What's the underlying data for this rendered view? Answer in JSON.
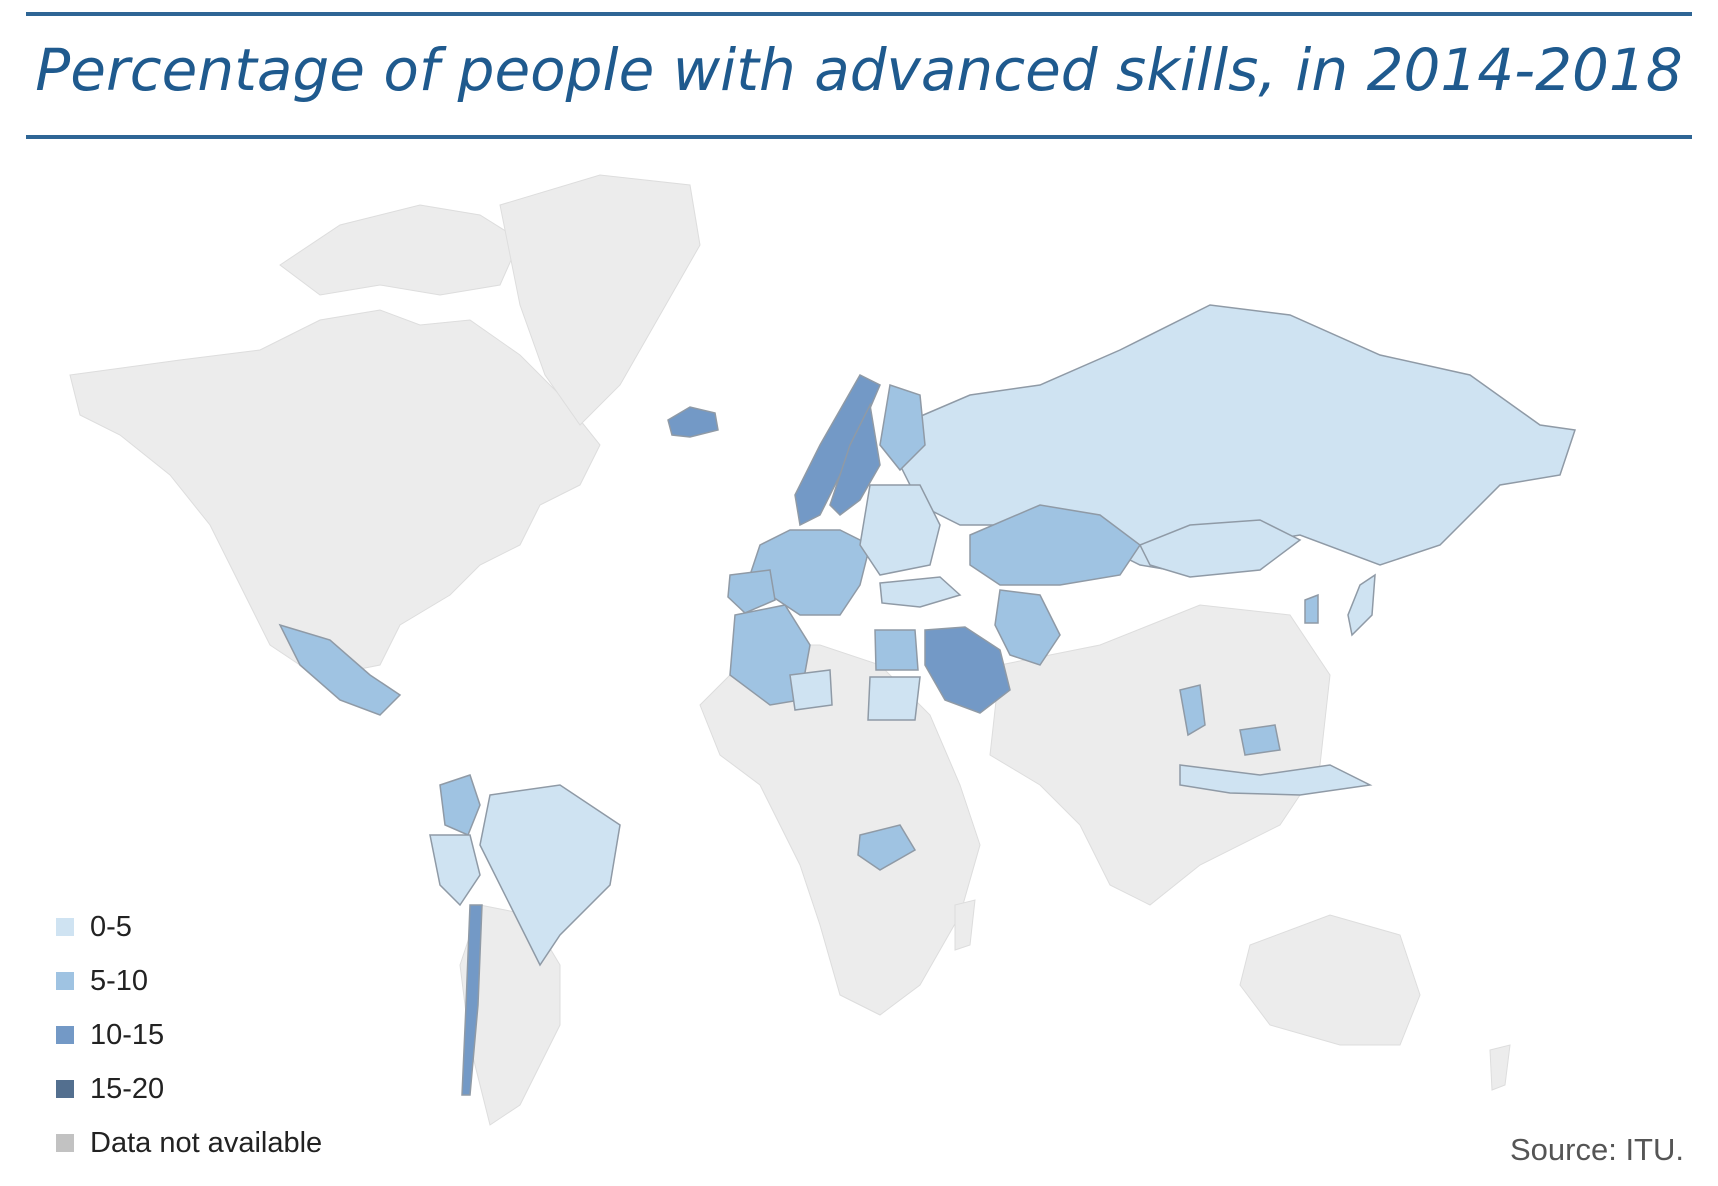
{
  "title": "Percentage of people with advanced skills, in 2014-2018",
  "source": "Source: ITU.",
  "colors": {
    "title": "#1f5a8e",
    "rule": "#2e6595",
    "land_no_data": "#ececec",
    "border": "#8f9aa6"
  },
  "legend": [
    {
      "label": "0-5",
      "color": "#cfe3f2"
    },
    {
      "label": "5-10",
      "color": "#9fc3e2"
    },
    {
      "label": "10-15",
      "color": "#7399c6"
    },
    {
      "label": "15-20",
      "color": "#536f8f"
    },
    {
      "label": "Data not available",
      "color": "#c2c2c2"
    }
  ],
  "regions": [
    {
      "name": "russia",
      "category": "0-5"
    },
    {
      "name": "kazakhstan",
      "category": "5-10"
    },
    {
      "name": "mongolia",
      "category": "0-5"
    },
    {
      "name": "norway",
      "category": "10-15"
    },
    {
      "name": "sweden",
      "category": "10-15"
    },
    {
      "name": "finland",
      "category": "5-10"
    },
    {
      "name": "iceland",
      "category": "10-15"
    },
    {
      "name": "western-europe",
      "category": "5-10"
    },
    {
      "name": "eastern-europe",
      "category": "0-5"
    },
    {
      "name": "spain",
      "category": "5-10"
    },
    {
      "name": "turkey",
      "category": "0-5"
    },
    {
      "name": "iran",
      "category": "5-10"
    },
    {
      "name": "saudi-arabia",
      "category": "10-15"
    },
    {
      "name": "algeria",
      "category": "5-10"
    },
    {
      "name": "egypt",
      "category": "5-10"
    },
    {
      "name": "sudan",
      "category": "0-5"
    },
    {
      "name": "niger",
      "category": "0-5"
    },
    {
      "name": "zambia",
      "category": "5-10"
    },
    {
      "name": "mexico",
      "category": "5-10"
    },
    {
      "name": "colombia",
      "category": "5-10"
    },
    {
      "name": "brazil",
      "category": "0-5"
    },
    {
      "name": "chile",
      "category": "10-15"
    },
    {
      "name": "peru",
      "category": "0-5"
    },
    {
      "name": "japan",
      "category": "0-5"
    },
    {
      "name": "korea",
      "category": "5-10"
    },
    {
      "name": "thailand",
      "category": "5-10"
    },
    {
      "name": "indonesia",
      "category": "0-5"
    },
    {
      "name": "malaysia",
      "category": "5-10"
    }
  ]
}
